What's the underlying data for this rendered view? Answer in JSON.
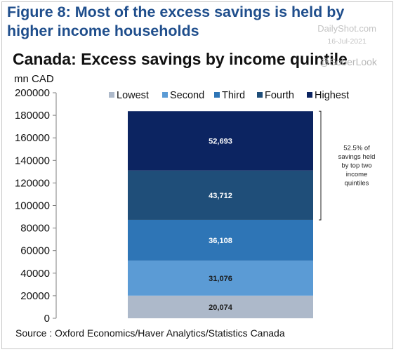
{
  "figure_title": "Figure 8: Most of the excess savings is held by higher income households",
  "watermark": {
    "brand": "DailyShot.com",
    "date": "16-Jul-2021"
  },
  "lookup_text": "@SoberLook",
  "source": "Source : Oxford Economics/Haver Analytics/Statistics Canada",
  "chart_data": {
    "type": "bar",
    "stacked": true,
    "title": "Canada: Excess savings by income quintile",
    "ylabel": "mn CAD",
    "ylim": [
      0,
      200000
    ],
    "yticks": [
      "0",
      "20000",
      "40000",
      "60000",
      "80000",
      "100000",
      "120000",
      "140000",
      "160000",
      "180000",
      "200000"
    ],
    "ytick_values": [
      0,
      20000,
      40000,
      60000,
      80000,
      100000,
      120000,
      140000,
      160000,
      180000,
      200000
    ],
    "grid": false,
    "legend_position": "top",
    "series": [
      {
        "name": "Lowest",
        "value": 20074,
        "label": "20,074",
        "color": "#adb9ca",
        "label_color": "#1a1a1a"
      },
      {
        "name": "Second",
        "value": 31076,
        "label": "31,076",
        "color": "#5b9bd5",
        "label_color": "#1a1a1a"
      },
      {
        "name": "Third",
        "value": 36108,
        "label": "36,108",
        "color": "#2e75b6",
        "label_color": "#ffffff"
      },
      {
        "name": "Fourth",
        "value": 43712,
        "label": "43,712",
        "color": "#1f4e79",
        "label_color": "#ffffff"
      },
      {
        "name": "Highest",
        "value": 52693,
        "label": "52,693",
        "color": "#0c2461",
        "label_color": "#ffffff"
      }
    ],
    "annotation": {
      "lines": [
        "52.5% of",
        "savings held",
        "by top two",
        "income",
        "quintiles"
      ],
      "spans_series": [
        "Fourth",
        "Highest"
      ]
    }
  }
}
